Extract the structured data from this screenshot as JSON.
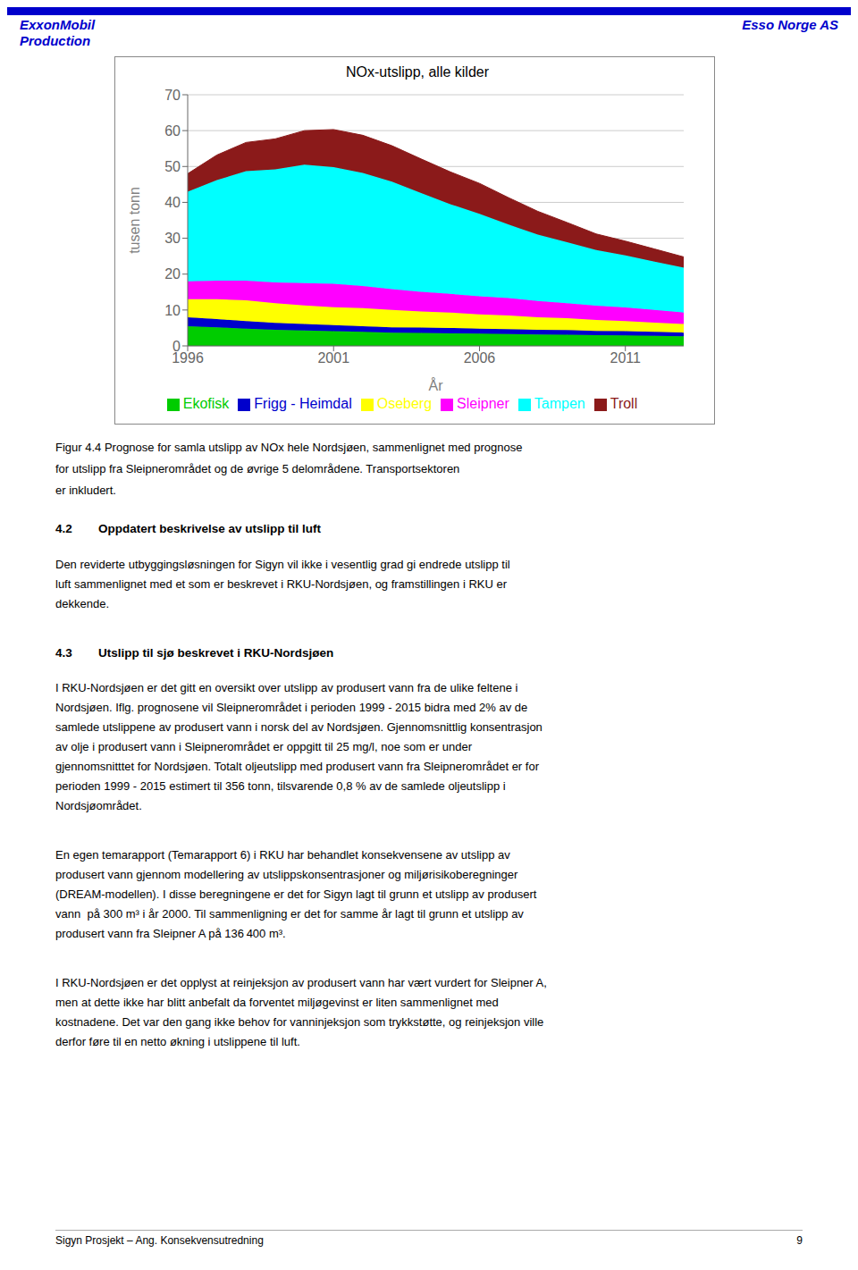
{
  "chart_data": {
    "type": "area",
    "title": "NOx-utslipp, alle kilder",
    "xlabel": "År",
    "ylabel": "tusen tonn",
    "x": [
      1996,
      1997,
      1998,
      1999,
      2000,
      2001,
      2002,
      2003,
      2004,
      2005,
      2006,
      2007,
      2008,
      2009,
      2010,
      2011,
      2012,
      2013
    ],
    "series": [
      {
        "name": "Ekofisk",
        "color": "#00CC00",
        "values": [
          5.5,
          5.2,
          4.8,
          4.5,
          4.3,
          4.1,
          3.9,
          3.7,
          3.6,
          3.5,
          3.4,
          3.3,
          3.2,
          3.1,
          3.0,
          2.9,
          2.8,
          2.7
        ]
      },
      {
        "name": "Frigg - Heimdal",
        "color": "#0000CC",
        "values": [
          2.5,
          2.3,
          2.1,
          1.9,
          1.8,
          1.7,
          1.6,
          1.5,
          1.5,
          1.5,
          1.4,
          1.4,
          1.3,
          1.3,
          1.2,
          1.2,
          1.1,
          1.0
        ]
      },
      {
        "name": "Oseberg",
        "color": "#FFFF00",
        "values": [
          5.0,
          5.5,
          5.8,
          5.5,
          5.2,
          5.0,
          5.0,
          4.8,
          4.5,
          4.3,
          4.0,
          3.8,
          3.5,
          3.3,
          3.0,
          2.8,
          2.6,
          2.4
        ]
      },
      {
        "name": "Sleipner",
        "color": "#FF00FF",
        "values": [
          5.0,
          5.2,
          5.5,
          5.8,
          6.2,
          6.5,
          6.2,
          5.8,
          5.5,
          5.2,
          5.0,
          4.8,
          4.5,
          4.2,
          4.0,
          3.8,
          3.5,
          3.2
        ]
      },
      {
        "name": "Tampen",
        "color": "#00FFFF",
        "values": [
          25.0,
          28.0,
          30.5,
          31.5,
          33.0,
          32.5,
          31.5,
          30.0,
          27.5,
          25.0,
          23.0,
          20.5,
          18.5,
          17.0,
          15.5,
          14.5,
          13.5,
          12.5
        ]
      },
      {
        "name": "Troll",
        "color": "#8B1A1A",
        "values": [
          5.0,
          7.0,
          8.0,
          8.5,
          9.5,
          10.5,
          10.5,
          10.0,
          9.5,
          9.0,
          8.5,
          7.5,
          6.5,
          5.5,
          4.5,
          4.0,
          3.5,
          3.0
        ]
      }
    ],
    "stacked": true,
    "xlim": [
      1996,
      2013
    ],
    "xticks": [
      1996,
      2001,
      2006,
      2011
    ],
    "ylim": [
      0,
      70
    ],
    "yticks": [
      0,
      10,
      20,
      30,
      40,
      50,
      60,
      70
    ],
    "grid": true,
    "legend": "bottom"
  },
  "page": {
    "header_left": [
      "ExxonMobil",
      "Production"
    ],
    "header_right": "Esso Norge AS",
    "header_color": "#0000CC",
    "header_bar_color": "#0000CC",
    "caption": [
      "Figur 4.4 Prognose for samla utslipp av NOx hele Nordsjøen, sammenlignet med prognose",
      "for utslipp fra Sleipnerområdet og de øvrige 5 delområdene. Transportsektoren",
      "er inkludert."
    ],
    "sections": [
      {
        "number": "4.2",
        "heading": "Oppdatert beskrivelse av utslipp til luft",
        "paragraphs": [
          [
            "Den reviderte utbyggingsløsningen for Sigyn vil ikke i vesentlig grad gi endrede utslipp til",
            "luft sammenlignet med et som er beskrevet i RKU-Nordsjøen, og framstillingen i RKU er",
            "dekkende."
          ]
        ]
      },
      {
        "number": "4.3",
        "heading": "Utslipp til sjø beskrevet i RKU-Nordsjøen",
        "paragraphs": [
          [
            "I RKU-Nordsjøen er det gitt en oversikt over utslipp av produsert vann fra de ulike feltene i",
            "Nordsjøen. Iflg. prognosene vil Sleipnerområdet i perioden 1999 - 2015 bidra med 2% av de",
            "samlede utslippene av produsert vann i norsk del av Nordsjøen. Gjennomsnittlig konsentrasjon",
            "av olje i produsert vann i Sleipnerområdet er oppgitt til 25 mg/l, noe som er under",
            "gjennomsnitttet for Nordsjøen. Totalt oljeutslipp med produsert vann fra Sleipnerområdet er for",
            "perioden 1999 - 2015 estimert til 356 tonn, tilsvarende 0,8 % av de samlede oljeutslipp i",
            "Nordsjøområdet."
          ],
          [
            "En egen temarapport (Temarapport 6) i RKU har behandlet konsekvensene av utslipp av",
            "produsert vann gjennom modellering av utslippskonsentrasjoner og miljørisikoberegninger",
            "(DREAM-modellen). I disse beregningene er det for Sigyn lagt til grunn et utslipp av produsert",
            "vann  på 300 m³ i år 2000. Til sammenligning er det for samme år lagt til grunn et utslipp av",
            "produsert vann fra Sleipner A på 136 400 m³."
          ],
          [
            "I RKU-Nordsjøen er det opplyst at reinjeksjon av produsert vann har vært vurdert for Sleipner A,",
            "men at dette ikke har blitt anbefalt da forventet miljøgevinst er liten sammenlignet med",
            "kostnadene. Det var den gang ikke behov for vanninjeksjon som trykkstøtte, og reinjeksjon ville",
            "derfor føre til en netto økning i utslippene til luft."
          ]
        ]
      }
    ],
    "footer": "Sigyn Prosjekt – Ang. Konsekvensutredning",
    "page_number": "9"
  }
}
